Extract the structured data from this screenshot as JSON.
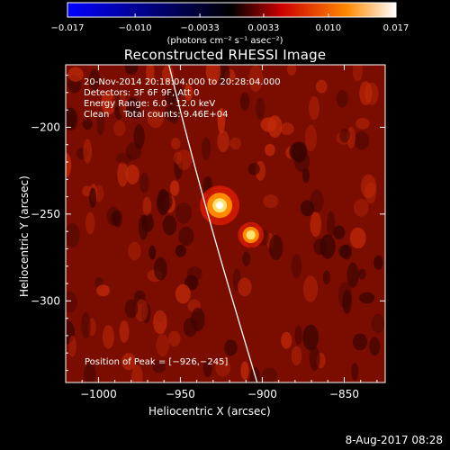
{
  "chart_data": {
    "type": "heatmap",
    "title": "Reconstructed RHESSI Image",
    "xlabel": "Heliocentric X (arcsec)",
    "ylabel": "Heliocentric Y (arcsec)",
    "xlim": [
      -1020,
      -825
    ],
    "ylim": [
      -347,
      -164
    ],
    "x_ticks": [
      -1000,
      -950,
      -900,
      -850
    ],
    "x_tick_labels": [
      "−1000",
      "−950",
      "−900",
      "−850"
    ],
    "y_ticks": [
      -200,
      -250,
      -300
    ],
    "y_tick_labels": [
      "−200",
      "−250",
      "−300"
    ],
    "colorbar": {
      "min": -0.017,
      "max": 0.017,
      "ticks": [
        -0.017,
        -0.01,
        -0.0033,
        0.0033,
        0.01,
        0.017
      ],
      "tick_labels": [
        "−0.017",
        "−0.010",
        "−0.0033",
        "0.0033",
        "0.010",
        "0.017"
      ],
      "unit_label": "(photons cm⁻² s⁻¹ asec⁻²)",
      "colors": [
        "#0000ff",
        "#000000",
        "#cc0000",
        "#ff8800",
        "#ffffff"
      ]
    },
    "sources": [
      {
        "x": -926,
        "y": -245,
        "peak": 0.017
      },
      {
        "x": -907,
        "y": -262,
        "peak": 0.011
      }
    ],
    "peak_position": [
      -926,
      -245
    ],
    "limb": [
      [
        -957,
        -164
      ],
      [
        -940,
        -230
      ],
      [
        -918,
        -300
      ],
      [
        -903,
        -347
      ]
    ]
  },
  "info": {
    "line1": "20-Nov-2014 20:18:04.000 to 20:28:04.000",
    "line2": "Detectors: 3F 6F 9F, Att 0",
    "line3": "Energy Range: 6.0 - 12.0 keV",
    "line4": "Clean     Total counts: 9.46E+04",
    "peak_text": "Position of Peak = [−926,−245]"
  },
  "footer": {
    "stamp": "8-Aug-2017 08:28"
  }
}
